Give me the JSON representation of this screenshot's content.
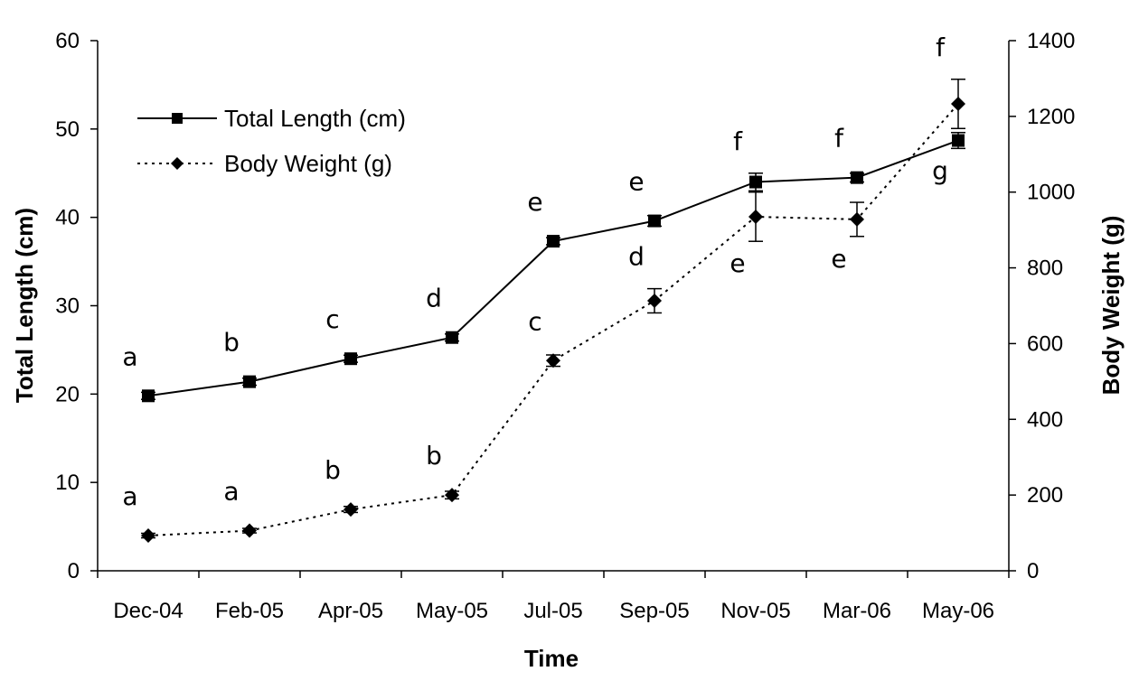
{
  "chart_data": {
    "type": "line",
    "categories": [
      "Dec-04",
      "Feb-05",
      "Apr-05",
      "May-05",
      "Jul-05",
      "Sep-05",
      "Nov-05",
      "Mar-06",
      "May-06"
    ],
    "xlabel": "Time",
    "ylabel_left": "Total Length (cm)",
    "ylabel_right": "Body Weight (g)",
    "ylim_left": [
      0,
      60
    ],
    "yticks_left": [
      0,
      10,
      20,
      30,
      40,
      50,
      60
    ],
    "ylim_right": [
      0,
      1400
    ],
    "yticks_right": [
      0,
      200,
      400,
      600,
      800,
      1000,
      1200,
      1400
    ],
    "grid": false,
    "legend_position": "top-left",
    "series": [
      {
        "name": "Total Length (cm)",
        "axis": "left",
        "marker": "square",
        "line_style": "solid",
        "values": [
          19.8,
          21.4,
          24.0,
          26.4,
          37.3,
          39.6,
          44.0,
          44.5,
          48.7
        ],
        "errors": [
          0.4,
          0.4,
          0.4,
          0.4,
          0.4,
          0.6,
          1.0,
          0.5,
          0.9
        ],
        "letters": [
          "a",
          "b",
          "c",
          "d",
          "e",
          "e",
          "f",
          "f",
          "g"
        ],
        "letter_placement": [
          "above",
          "above",
          "above",
          "above",
          "above",
          "above",
          "above",
          "above",
          "below"
        ]
      },
      {
        "name": "Body Weight (g)",
        "axis": "right",
        "marker": "diamond",
        "line_style": "dotted",
        "values": [
          93,
          106,
          162,
          200,
          555,
          713,
          935,
          928,
          1233
        ],
        "errors": [
          6,
          6,
          8,
          10,
          15,
          32,
          65,
          45,
          65
        ],
        "letters": [
          "a",
          "a",
          "b",
          "b",
          "c",
          "d",
          "e",
          "e",
          "f"
        ],
        "letter_placement": [
          "above",
          "above",
          "above",
          "above",
          "above",
          "above",
          "below",
          "below",
          "above"
        ]
      }
    ]
  }
}
